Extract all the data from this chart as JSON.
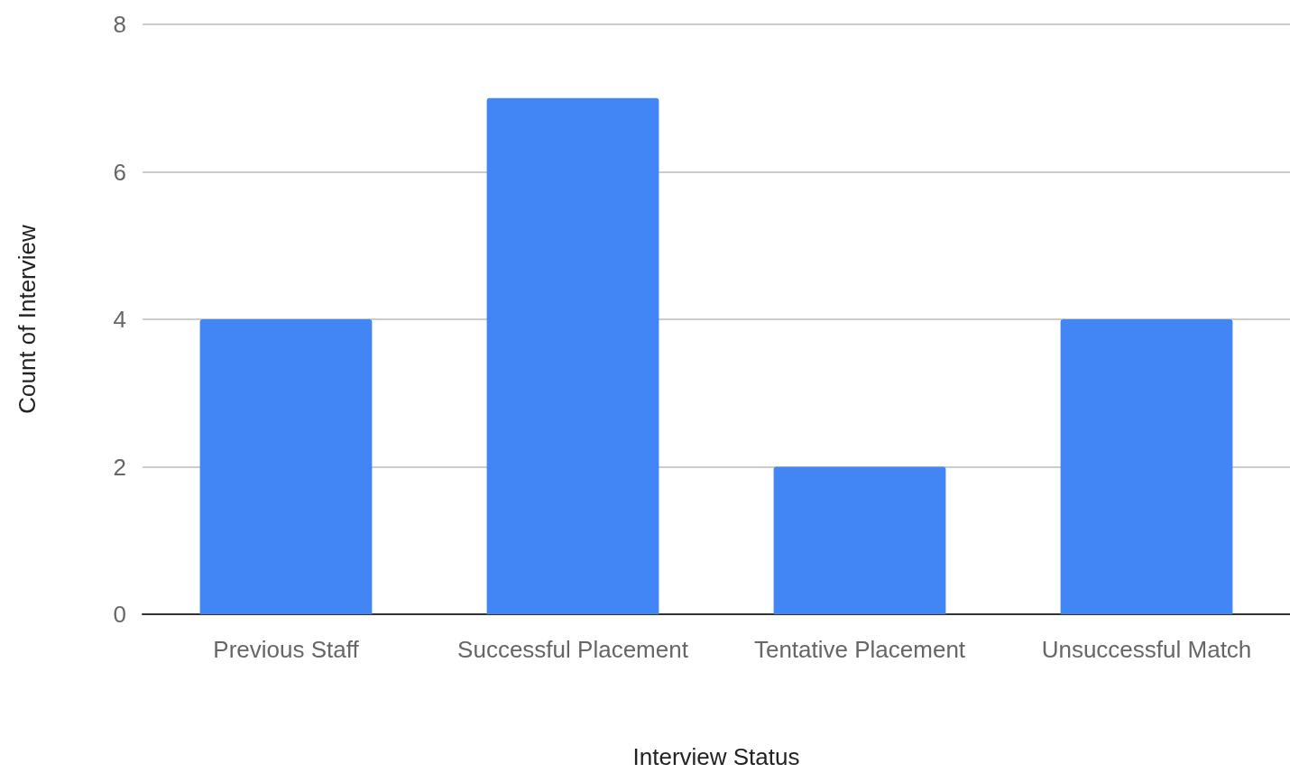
{
  "chart_data": {
    "type": "bar",
    "xlabel": "Interview Status",
    "ylabel": "Count of Interview",
    "categories": [
      "Previous Staff",
      "Successful Placement",
      "Tentative Placement",
      "Unsuccessful Match"
    ],
    "values": [
      4,
      7,
      2,
      4
    ],
    "color": "#4285f4",
    "ylim": [
      0,
      8
    ],
    "yticks": [
      0,
      2,
      4,
      6,
      8
    ],
    "grid": "y"
  }
}
